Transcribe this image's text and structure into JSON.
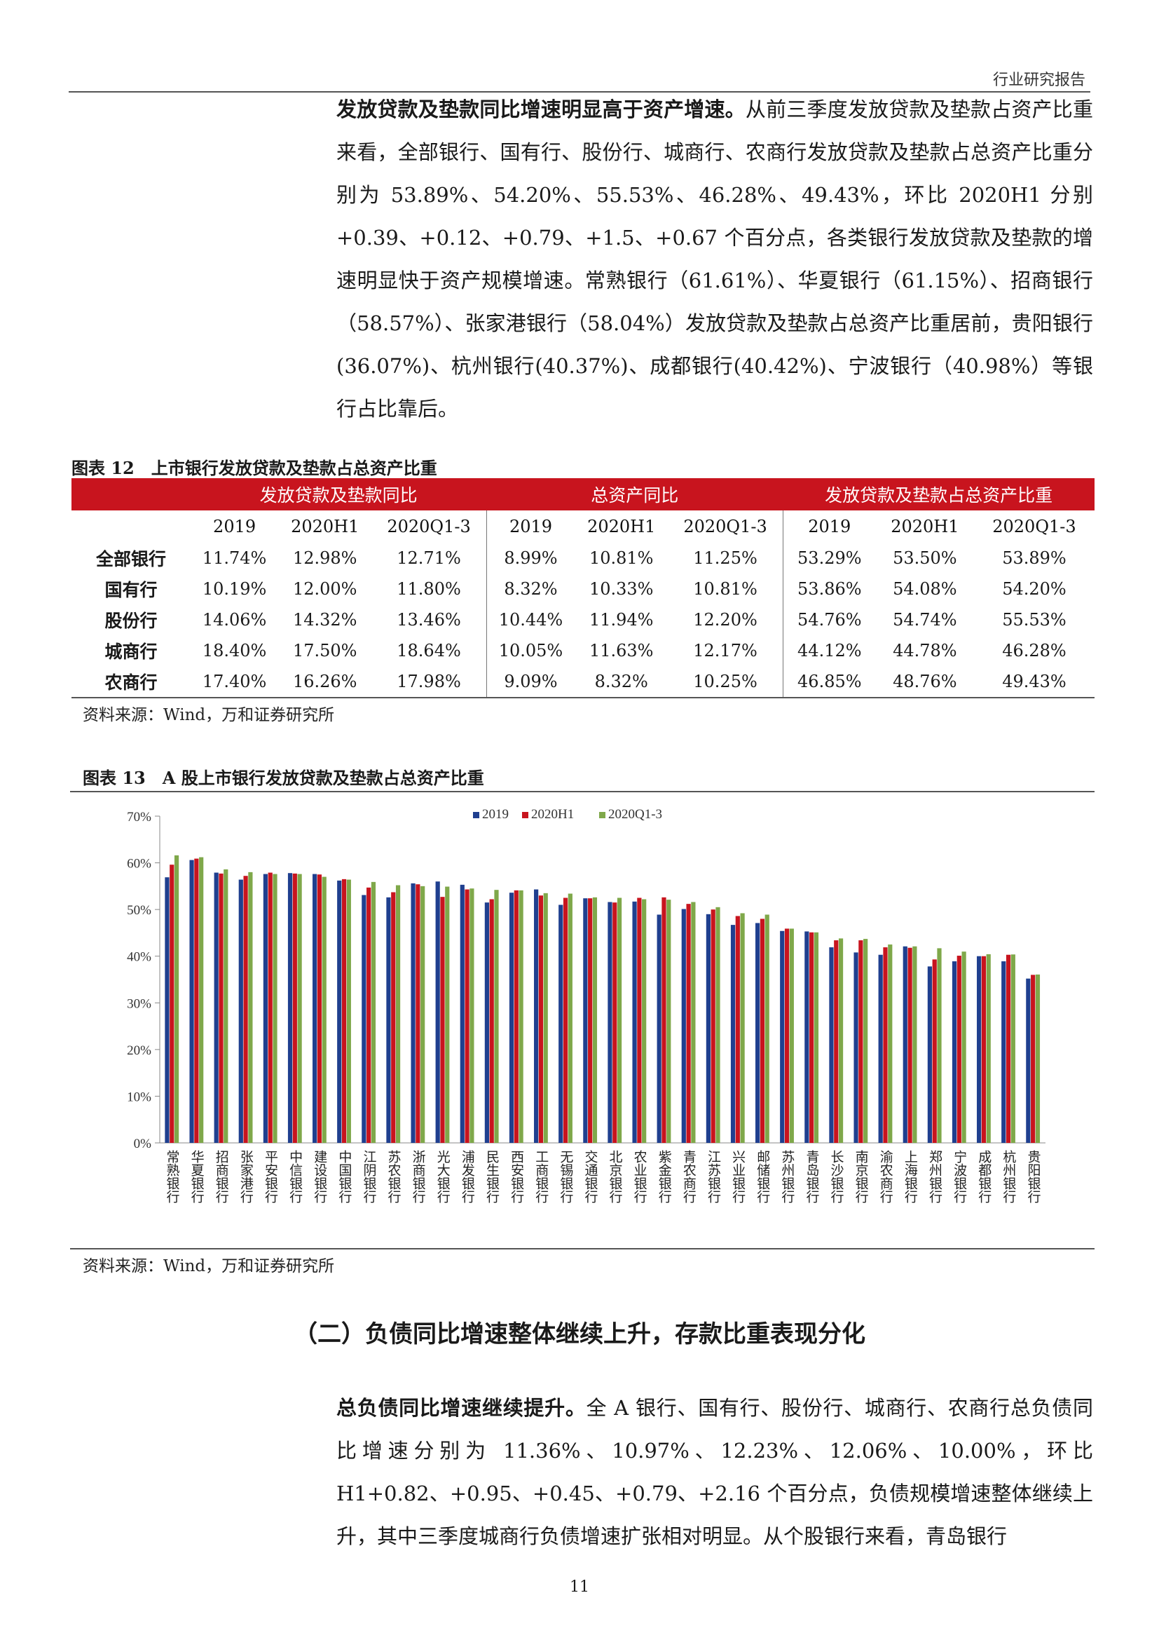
{
  "header": {
    "report_type": "行业研究报告"
  },
  "para1": {
    "lead": "发放贷款及垫款同比增速明显高于资产增速。",
    "body": "从前三季度发放贷款及垫款占资产比重来看，全部银行、国有行、股份行、城商行、农商行发放贷款及垫款占总资产比重分别为 53.89%、54.20%、55.53%、46.28%、49.43%，环比 2020H1 分别+0.39、+0.12、+0.79、+1.5、+0.67 个百分点，各类银行发放贷款及垫款的增速明显快于资产规模增速。常熟银行（61.61%）、华夏银行（61.15%）、招商银行（58.57%）、张家港银行（58.04%）发放贷款及垫款占总资产比重居前，贵阳银行(36.07%)、杭州银行(40.37%)、成都银行(40.42%)、宁波银行（40.98%）等银行占比靠后。"
  },
  "fig12": {
    "title": "图表 12　上市银行发放贷款及垫款占总资产比重",
    "group_headers": [
      "发放贷款及垫款同比",
      "总资产同比",
      "发放贷款及垫款占总资产比重"
    ],
    "sub_headers": [
      "2019",
      "2020H1",
      "2020Q1-3",
      "2019",
      "2020H1",
      "2020Q1-3",
      "2019",
      "2020H1",
      "2020Q1-3"
    ],
    "rows": [
      {
        "label": "全部银行",
        "cells": [
          "11.74%",
          "12.98%",
          "12.71%",
          "8.99%",
          "10.81%",
          "11.25%",
          "53.29%",
          "53.50%",
          "53.89%"
        ]
      },
      {
        "label": "国有行",
        "cells": [
          "10.19%",
          "12.00%",
          "11.80%",
          "8.32%",
          "10.33%",
          "10.81%",
          "53.86%",
          "54.08%",
          "54.20%"
        ]
      },
      {
        "label": "股份行",
        "cells": [
          "14.06%",
          "14.32%",
          "13.46%",
          "10.44%",
          "11.94%",
          "12.20%",
          "54.76%",
          "54.74%",
          "55.53%"
        ]
      },
      {
        "label": "城商行",
        "cells": [
          "18.40%",
          "17.50%",
          "18.64%",
          "10.05%",
          "11.63%",
          "12.17%",
          "44.12%",
          "44.78%",
          "46.28%"
        ]
      },
      {
        "label": "农商行",
        "cells": [
          "17.40%",
          "16.26%",
          "17.98%",
          "9.09%",
          "8.32%",
          "10.25%",
          "46.85%",
          "48.76%",
          "49.43%"
        ]
      }
    ],
    "source": "资料来源：Wind，万和证券研究所"
  },
  "fig13": {
    "title": "图表 13　A 股上市银行发放贷款及垫款占总资产比重",
    "source": "资料来源：Wind，万和证券研究所"
  },
  "chart_data": {
    "type": "bar",
    "title": "",
    "xlabel": "",
    "ylabel": "",
    "ylim": [
      0,
      70
    ],
    "yticks": [
      "0%",
      "10%",
      "20%",
      "30%",
      "40%",
      "50%",
      "60%",
      "70%"
    ],
    "grid": false,
    "legend_position": "top-center",
    "categories": [
      "常熟银行",
      "华夏银行",
      "招商银行",
      "张家港行",
      "平安银行",
      "中信银行",
      "建设银行",
      "中国银行",
      "江阴银行",
      "苏农银行",
      "浙商银行",
      "光大银行",
      "浦发银行",
      "民生银行",
      "西安银行",
      "工商银行",
      "无锡银行",
      "交通银行",
      "北京银行",
      "农业银行",
      "紫金银行",
      "青农商行",
      "江苏银行",
      "兴业银行",
      "邮储银行",
      "苏州银行",
      "青岛银行",
      "长沙银行",
      "南京银行",
      "渝农商行",
      "上海银行",
      "郑州银行",
      "宁波银行",
      "成都银行",
      "杭州银行",
      "贵阳银行"
    ],
    "series": [
      {
        "name": "2019",
        "color": "#1f3f8f",
        "values": [
          56.9,
          60.6,
          57.9,
          56.4,
          57.6,
          57.8,
          57.6,
          56.2,
          53.1,
          52.6,
          55.6,
          56.0,
          55.3,
          51.5,
          53.6,
          54.3,
          51.0,
          52.4,
          51.6,
          51.7,
          48.9,
          50.1,
          49.0,
          46.7,
          47.1,
          45.4,
          45.3,
          41.9,
          40.8,
          40.3,
          42.1,
          37.8,
          38.9,
          40.0,
          38.9,
          35.2
        ]
      },
      {
        "name": "2020H1",
        "color": "#c8141e",
        "values": [
          59.6,
          60.9,
          57.7,
          57.2,
          57.9,
          57.7,
          57.5,
          56.5,
          54.7,
          53.7,
          55.4,
          52.7,
          54.3,
          52.2,
          54.1,
          53.0,
          52.5,
          52.4,
          51.5,
          52.5,
          52.6,
          51.2,
          50.0,
          48.6,
          48.0,
          45.9,
          45.1,
          43.4,
          43.4,
          41.9,
          41.8,
          39.3,
          40.1,
          40.0,
          40.3,
          36.0
        ]
      },
      {
        "name": "2020Q1-3",
        "color": "#7fa84a",
        "values": [
          61.6,
          61.2,
          58.6,
          58.0,
          57.6,
          57.6,
          57.0,
          56.4,
          55.9,
          55.2,
          55.0,
          54.9,
          54.5,
          54.2,
          54.1,
          53.5,
          53.4,
          52.6,
          52.5,
          52.2,
          52.1,
          51.6,
          50.5,
          49.2,
          48.9,
          45.9,
          45.1,
          43.8,
          43.7,
          42.5,
          42.1,
          41.7,
          40.98,
          40.42,
          40.37,
          36.07
        ]
      }
    ]
  },
  "section2": {
    "title": "（二）负债同比增速整体继续上升，存款比重表现分化"
  },
  "para2": {
    "lead": "总负债同比增速继续提升。",
    "body": "全 A 银行、国有行、股份行、城商行、农商行总负债同比增速分别为 11.36%、10.97%、12.23%、12.06%、10.00%，环比 H1+0.82、+0.95、+0.45、+0.79、+2.16 个百分点，负债规模增速整体继续上升，其中三季度城商行负债增速扩张相对明显。从个股银行来看，青岛银行"
  },
  "footer": {
    "page_number": "11"
  }
}
